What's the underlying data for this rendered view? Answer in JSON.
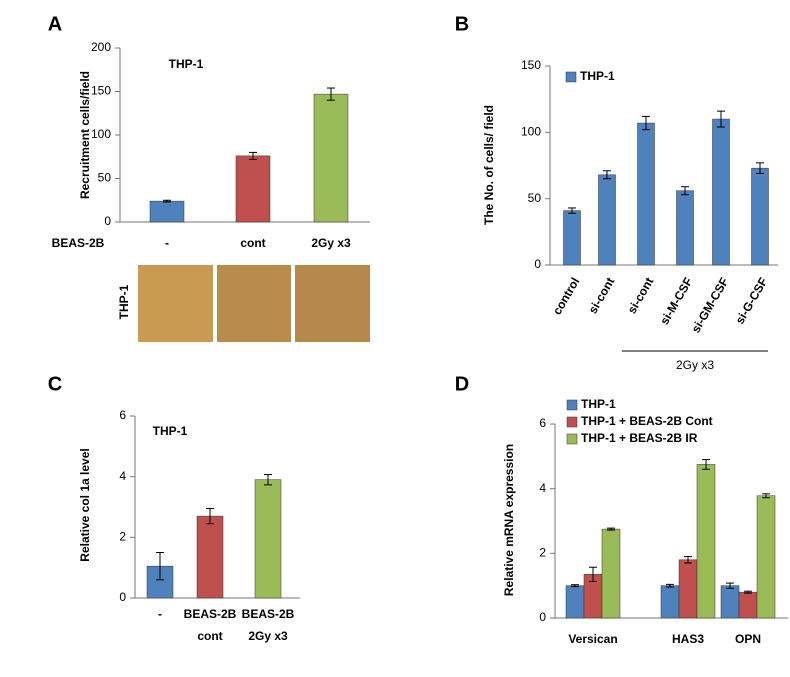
{
  "chart_data": [
    {
      "type": "bar",
      "panel_label": "A",
      "annotation": "THP-1",
      "y_label": "Recruitment  cells/field",
      "row_label": "BEAS-2B",
      "image_label": "THP-1",
      "categories": [
        "-",
        "cont",
        "2Gy x3"
      ],
      "values": [
        24,
        76,
        147
      ],
      "errors": [
        1,
        4,
        7
      ],
      "colors": [
        "#4f81bd",
        "#c0504d",
        "#9bbb59"
      ],
      "ylim": [
        0,
        200
      ],
      "yticks": [
        0,
        50,
        100,
        150,
        200
      ]
    },
    {
      "type": "bar",
      "panel_label": "B",
      "y_label": "The No. of cells/ field",
      "categories": [
        "control",
        "si-cont",
        "si-cont",
        "si-M-CSF",
        "si-GM-CSF",
        "si-G-CSF"
      ],
      "series": [
        {
          "name": "THP-1",
          "color": "#4f81bd",
          "values": [
            41,
            68,
            107,
            56,
            110,
            73
          ],
          "errors": [
            2,
            3,
            5,
            3,
            6,
            4
          ]
        }
      ],
      "bracket_label": "2Gy x3",
      "ylim": [
        0,
        150
      ],
      "yticks": [
        0,
        50,
        100,
        150
      ],
      "legend": "top-left"
    },
    {
      "type": "bar",
      "panel_label": "C",
      "annotation": "THP-1",
      "y_label": "Relative col 1a level",
      "categories": [
        "-",
        [
          "BEAS-2B",
          "cont"
        ],
        [
          "BEAS-2B",
          "2Gy x3"
        ]
      ],
      "values": [
        1.05,
        2.7,
        3.9
      ],
      "errors": [
        0.45,
        0.25,
        0.17
      ],
      "colors": [
        "#4f81bd",
        "#c0504d",
        "#9bbb59"
      ],
      "ylim": [
        0,
        6
      ],
      "yticks": [
        0,
        2,
        4,
        6
      ]
    },
    {
      "type": "bar",
      "panel_label": "D",
      "y_label": "Relative mRNA expression",
      "categories": [
        "Versican",
        "HAS3",
        "OPN"
      ],
      "series": [
        {
          "name": "THP-1",
          "color": "#4f81bd",
          "values": [
            1,
            1,
            1
          ],
          "errors": [
            0.03,
            0.04,
            0.08
          ]
        },
        {
          "name": "THP-1 + BEAS-2B Cont",
          "color": "#c0504d",
          "values": [
            1.35,
            1.8,
            0.8
          ],
          "errors": [
            0.22,
            0.1,
            0.03
          ]
        },
        {
          "name": "THP-1 + BEAS-2B IR",
          "color": "#9bbb59",
          "values": [
            2.75,
            4.75,
            3.78
          ],
          "errors": [
            0.03,
            0.15,
            0.06
          ]
        }
      ],
      "ylim": [
        0,
        6
      ],
      "yticks": [
        0,
        2,
        4,
        6
      ],
      "legend": "top-left"
    }
  ]
}
